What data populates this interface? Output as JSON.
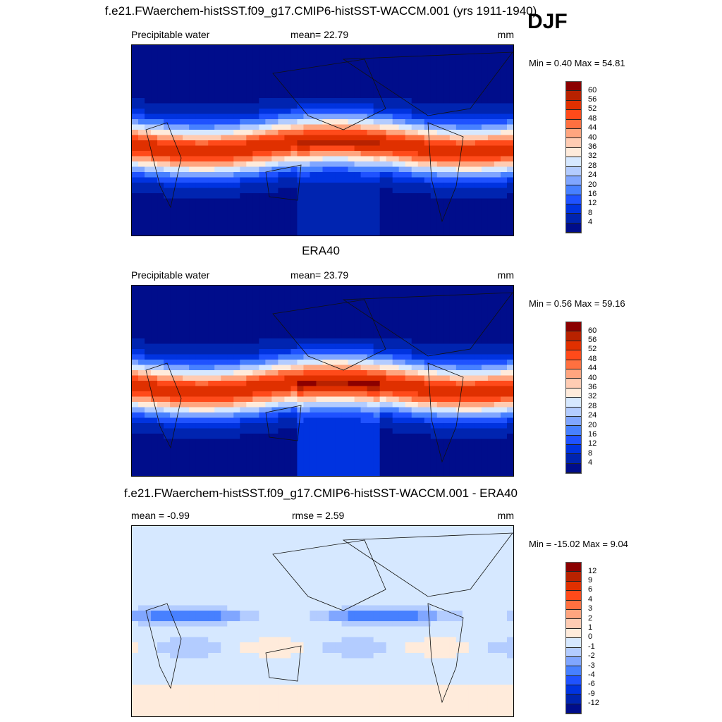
{
  "season": "DJF",
  "colors": [
    "#8b0000",
    "#b82200",
    "#e03000",
    "#ff4a1a",
    "#ff7040",
    "#ffa57f",
    "#ffccb3",
    "#ffebdb",
    "#d6e8ff",
    "#b3ccff",
    "#80a6ff",
    "#4780ff",
    "#1f52ff",
    "#0033e0",
    "#0024b0",
    "#000d8b"
  ],
  "panels": [
    {
      "title": "f.e21.FWaerchem-histSST.f09_g17.CMIP6-histSST-WACCM.001 (yrs 1911-1940)",
      "left": "Precipitable water",
      "center": "mean=  22.79",
      "right": "mm",
      "minmax": "Min =   0.40 Max =  54.81",
      "levels": [
        "60",
        "56",
        "52",
        "48",
        "44",
        "40",
        "36",
        "32",
        "28",
        "24",
        "20",
        "16",
        "12",
        "8",
        "4"
      ]
    },
    {
      "title": "ERA40",
      "left": "Precipitable water",
      "center": "mean=  23.79",
      "right": "mm",
      "minmax": "Min =   0.56 Max =  59.16",
      "levels": [
        "60",
        "56",
        "52",
        "48",
        "44",
        "40",
        "36",
        "32",
        "28",
        "24",
        "20",
        "16",
        "12",
        "8",
        "4"
      ]
    },
    {
      "title": "f.e21.FWaerchem-histSST.f09_g17.CMIP6-histSST-WACCM.001 - ERA40",
      "left": "mean =  -0.99",
      "center": "rmse =   2.59",
      "right": "mm",
      "minmax": "Min = -15.02 Max =   9.04",
      "levels": [
        "12",
        "9",
        "6",
        "4",
        "3",
        "2",
        "1",
        "0",
        "-1",
        "-2",
        "-3",
        "-4",
        "-6",
        "-9",
        "-12"
      ]
    }
  ]
}
